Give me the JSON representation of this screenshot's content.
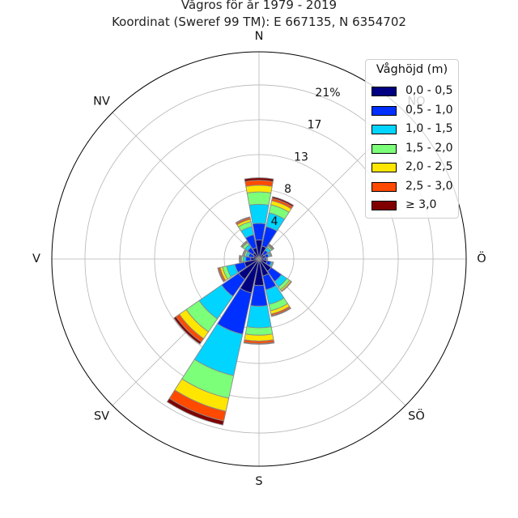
{
  "chart_data": {
    "type": "wind_rose",
    "title": "Vågros för år 1979 - 2019",
    "subtitle": "Koordinat (Sweref 99 TM): E 667135, N 6354702",
    "directions": [
      "N",
      "NO",
      "Ö",
      "SÖ",
      "S",
      "SV",
      "V",
      "NV"
    ],
    "radial_tick_labels": [
      "4",
      "8",
      "13",
      "17",
      "21%"
    ],
    "radial_ticks": [
      4.2,
      8.4,
      12.6,
      16.8,
      21
    ],
    "r_max": 25,
    "legend_title": "Våghöjd (m)",
    "legend_position": "top-right",
    "grid": true,
    "sector_width_deg": 22.5,
    "bin_labels": [
      "0,0 - 0,5",
      "0,5 - 1,0",
      "1,0 - 1,5",
      "1,5 - 2,0",
      "2,0 - 2,5",
      "2,5 - 3,0",
      "≥ 3,0"
    ],
    "bin_colors": [
      "#000080",
      "#0030ff",
      "#00d4ff",
      "#7cff79",
      "#ffe600",
      "#ff4a00",
      "#800000"
    ],
    "sectors": [
      {
        "angle": 0,
        "values": [
          2.3,
          2.0,
          2.3,
          1.5,
          0.8,
          0.6,
          0.3
        ]
      },
      {
        "angle": 22.5,
        "values": [
          1.6,
          2.4,
          1.7,
          1.0,
          0.5,
          0.3,
          0.2
        ]
      },
      {
        "angle": 45,
        "values": [
          0.7,
          0.6,
          0.4,
          0.2,
          0.1,
          0.1,
          0.1
        ]
      },
      {
        "angle": 67.5,
        "values": [
          0.8,
          0.4,
          0.2,
          0.1,
          0.05,
          0.05,
          0.0
        ]
      },
      {
        "angle": 90,
        "values": [
          0.6,
          0.3,
          0.1,
          0.05,
          0.0,
          0.0,
          0.0
        ]
      },
      {
        "angle": 112.5,
        "values": [
          1.0,
          0.5,
          0.2,
          0.1,
          0.0,
          0.0,
          0.0
        ]
      },
      {
        "angle": 135,
        "values": [
          1.8,
          1.5,
          0.8,
          0.4,
          0.2,
          0.1,
          0.0
        ]
      },
      {
        "angle": 157.5,
        "values": [
          2.1,
          1.7,
          1.8,
          0.8,
          0.4,
          0.2,
          0.1
        ]
      },
      {
        "angle": 180,
        "values": [
          3.2,
          2.5,
          2.6,
          0.9,
          0.7,
          0.3,
          0.1
        ]
      },
      {
        "angle": 202.5,
        "values": [
          4.2,
          5.1,
          5.1,
          2.8,
          1.6,
          1.2,
          0.5
        ]
      },
      {
        "angle": 225,
        "values": [
          3.0,
          2.5,
          3.3,
          1.9,
          1.0,
          0.5,
          0.3
        ]
      },
      {
        "angle": 247.5,
        "values": [
          1.8,
          1.2,
          1.0,
          0.5,
          0.3,
          0.2,
          0.1
        ]
      },
      {
        "angle": 270,
        "values": [
          1.0,
          0.6,
          0.3,
          0.2,
          0.1,
          0.1,
          0.1
        ]
      },
      {
        "angle": 292.5,
        "values": [
          0.7,
          0.6,
          0.3,
          0.2,
          0.1,
          0.1,
          0.05
        ]
      },
      {
        "angle": 315,
        "values": [
          0.9,
          0.8,
          0.4,
          0.3,
          0.1,
          0.1,
          0.05
        ]
      },
      {
        "angle": 337.5,
        "values": [
          1.4,
          1.6,
          1.0,
          0.6,
          0.3,
          0.2,
          0.1
        ]
      }
    ]
  }
}
